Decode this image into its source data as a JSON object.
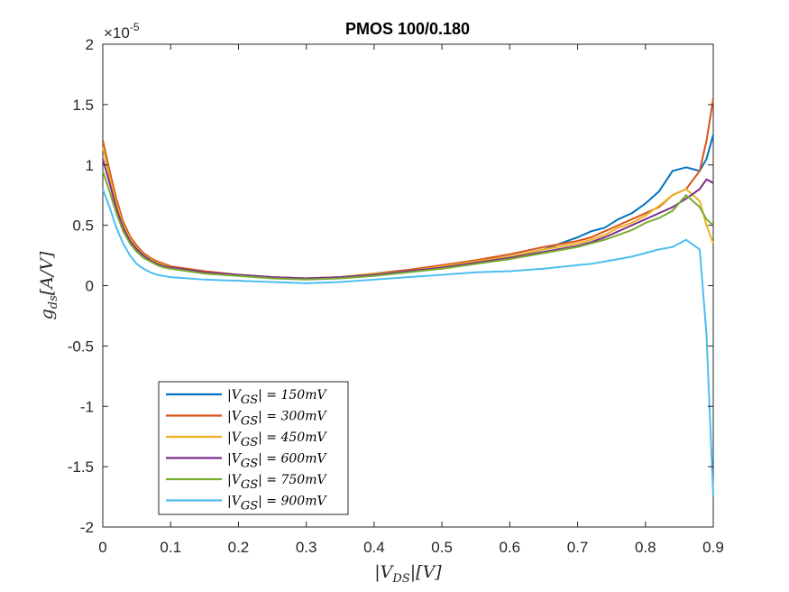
{
  "chart_data": {
    "type": "line",
    "title": "PMOS 100/0.180",
    "xlabel": "|V_DS|[V]",
    "ylabel": "g_ds[A/V]",
    "exponent_label": "×10^-5",
    "xlim": [
      0,
      0.9
    ],
    "ylim": [
      -2,
      2
    ],
    "y_scale_note": "values in units of 1e-5 A/V",
    "xticks": [
      "0",
      "0.1",
      "0.2",
      "0.3",
      "0.4",
      "0.5",
      "0.6",
      "0.7",
      "0.8",
      "0.9"
    ],
    "yticks": [
      "-2",
      "-1.5",
      "-1",
      "-0.5",
      "0",
      "0.5",
      "1",
      "1.5",
      "2"
    ],
    "grid": false,
    "legend_position": "bottom-left",
    "x": [
      0,
      0.01,
      0.02,
      0.03,
      0.04,
      0.05,
      0.06,
      0.07,
      0.08,
      0.09,
      0.1,
      0.15,
      0.2,
      0.25,
      0.3,
      0.35,
      0.4,
      0.45,
      0.5,
      0.55,
      0.6,
      0.65,
      0.7,
      0.72,
      0.74,
      0.76,
      0.78,
      0.8,
      0.82,
      0.84,
      0.86,
      0.88,
      0.89,
      0.9
    ],
    "series": [
      {
        "name": "|V_GS| = 150mV",
        "color": "#0072BD",
        "values": [
          1.2,
          0.95,
          0.7,
          0.52,
          0.4,
          0.32,
          0.27,
          0.23,
          0.2,
          0.18,
          0.16,
          0.11,
          0.09,
          0.07,
          0.06,
          0.07,
          0.1,
          0.13,
          0.16,
          0.2,
          0.24,
          0.3,
          0.4,
          0.45,
          0.48,
          0.55,
          0.6,
          0.68,
          0.78,
          0.95,
          0.98,
          0.95,
          1.05,
          1.25
        ]
      },
      {
        "name": "|V_GS| = 300mV",
        "color": "#D95319",
        "values": [
          1.2,
          0.95,
          0.72,
          0.53,
          0.41,
          0.33,
          0.27,
          0.23,
          0.2,
          0.18,
          0.16,
          0.12,
          0.09,
          0.07,
          0.06,
          0.07,
          0.1,
          0.13,
          0.17,
          0.21,
          0.26,
          0.32,
          0.37,
          0.4,
          0.45,
          0.5,
          0.55,
          0.6,
          0.65,
          0.75,
          0.8,
          0.95,
          1.2,
          1.55
        ]
      },
      {
        "name": "|V_GS| = 450mV",
        "color": "#EDB120",
        "values": [
          1.15,
          0.9,
          0.68,
          0.5,
          0.39,
          0.31,
          0.26,
          0.22,
          0.19,
          0.17,
          0.15,
          0.11,
          0.08,
          0.07,
          0.06,
          0.07,
          0.1,
          0.12,
          0.16,
          0.2,
          0.24,
          0.3,
          0.35,
          0.38,
          0.42,
          0.48,
          0.52,
          0.58,
          0.66,
          0.75,
          0.8,
          0.7,
          0.5,
          0.35
        ]
      },
      {
        "name": "|V_GS| = 600mV",
        "color": "#7E2F8E",
        "values": [
          1.05,
          0.85,
          0.64,
          0.48,
          0.37,
          0.3,
          0.25,
          0.21,
          0.18,
          0.16,
          0.15,
          0.11,
          0.09,
          0.07,
          0.06,
          0.07,
          0.09,
          0.12,
          0.15,
          0.19,
          0.23,
          0.28,
          0.33,
          0.36,
          0.4,
          0.45,
          0.5,
          0.55,
          0.6,
          0.65,
          0.72,
          0.8,
          0.88,
          0.85
        ]
      },
      {
        "name": "|V_GS| = 750mV",
        "color": "#77AC30",
        "values": [
          0.95,
          0.78,
          0.6,
          0.45,
          0.35,
          0.28,
          0.23,
          0.2,
          0.17,
          0.15,
          0.14,
          0.1,
          0.08,
          0.06,
          0.05,
          0.06,
          0.08,
          0.11,
          0.14,
          0.18,
          0.22,
          0.27,
          0.32,
          0.35,
          0.38,
          0.42,
          0.46,
          0.52,
          0.56,
          0.62,
          0.75,
          0.65,
          0.55,
          0.5
        ]
      },
      {
        "name": "|V_GS| = 900mV",
        "color": "#4DBEEE",
        "values": [
          0.8,
          0.65,
          0.48,
          0.35,
          0.25,
          0.18,
          0.14,
          0.11,
          0.09,
          0.08,
          0.07,
          0.05,
          0.04,
          0.03,
          0.02,
          0.03,
          0.05,
          0.07,
          0.09,
          0.11,
          0.12,
          0.14,
          0.17,
          0.18,
          0.2,
          0.22,
          0.24,
          0.27,
          0.3,
          0.32,
          0.38,
          0.3,
          -0.4,
          -1.75
        ]
      }
    ]
  }
}
